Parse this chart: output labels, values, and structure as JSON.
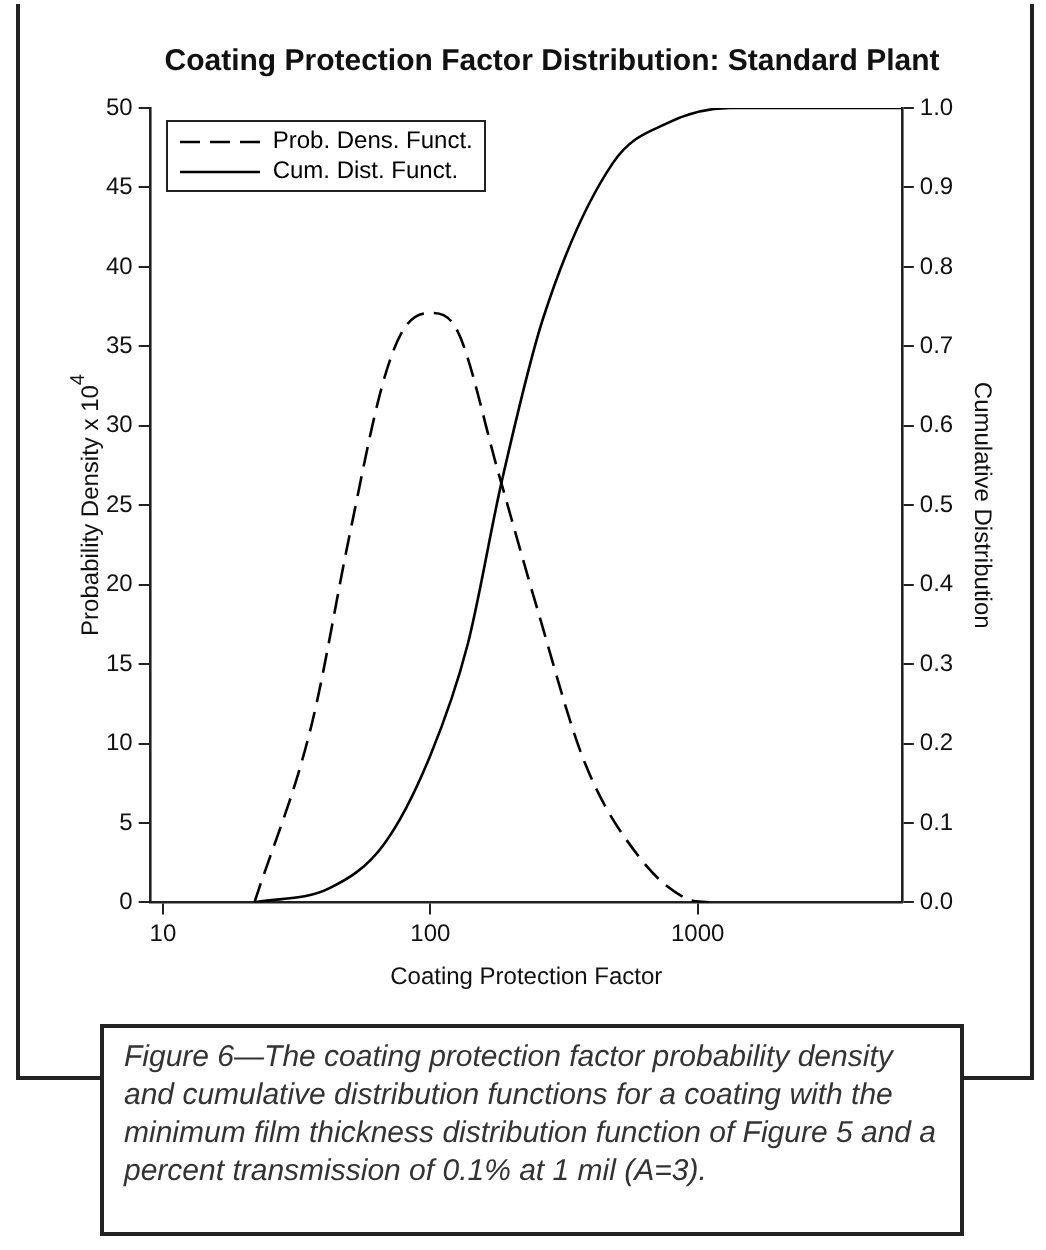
{
  "chart_data": {
    "type": "line",
    "title": "Coating Protection Factor Distribution: Standard Plant",
    "xlabel": "Coating Protection Factor",
    "ylabel": "Probability Density x 10$^{4}$",
    "y2label": "Cumulative Distribution",
    "log": "x",
    "xlim": [
      9,
      5800
    ],
    "xticks": [
      10,
      100,
      1000
    ],
    "ylim": [
      0,
      50
    ],
    "yticks": [
      0,
      5,
      10,
      15,
      20,
      25,
      30,
      35,
      40,
      45,
      50
    ],
    "y2lim": [
      0,
      1
    ],
    "y2ticks": [
      {
        "value": 0,
        "label": "0.0"
      },
      {
        "value": 0.1,
        "label": "0.1"
      },
      {
        "value": 0.2,
        "label": "0.2"
      },
      {
        "value": 0.3,
        "label": "0.3"
      },
      {
        "value": 0.4,
        "label": "0.4"
      },
      {
        "value": 0.5,
        "label": "0.5"
      },
      {
        "value": 0.6,
        "label": "0.6"
      },
      {
        "value": 0.7,
        "label": "0.7"
      },
      {
        "value": 0.8,
        "label": "0.8"
      },
      {
        "value": 0.9,
        "label": "0.9"
      },
      {
        "value": 1,
        "label": "1.0"
      }
    ],
    "grid": false,
    "legend": "top left",
    "marker": "none",
    "series": [
      {
        "name": "Prob. Dens. Funct.",
        "color": "#000000",
        "line_style": "dashed",
        "x": [
          22,
          36,
          50,
          66,
          79,
          100,
          126,
          180,
          250,
          378,
          608,
          920,
          1100
        ],
        "values": [
          0,
          11.2,
          23.2,
          32.5,
          36,
          37.1,
          36,
          27,
          18.6,
          8.8,
          2.8,
          0.2,
          0
        ]
      },
      {
        "name": "Cum. Dist. Funct.",
        "color": "#000000",
        "line_style": "solid",
        "axis": "y2",
        "x": [
          22,
          42,
          67,
          100,
          138,
          185,
          264,
          480,
          770,
          1320,
          5800
        ],
        "values": [
          0,
          0.018,
          0.073,
          0.185,
          0.325,
          0.53,
          0.735,
          0.93,
          0.981,
          1,
          1
        ]
      }
    ],
    "annotations": [
      "Figure 6—The coating protection factor probability density and cumulative distribution functions for a coating with the minimum film thickness distribution function of Figure 5 and a percent transmission of 0.1% at 1 mil (A=3)."
    ]
  }
}
